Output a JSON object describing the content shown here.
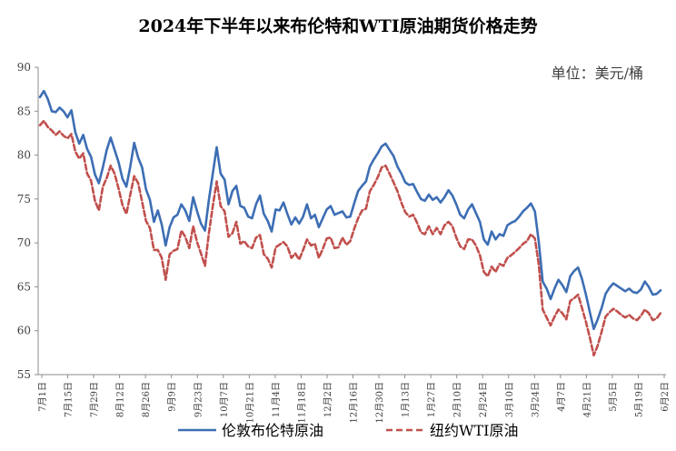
{
  "chart_data": {
    "type": "line",
    "title": "2024年下半年以来布伦特和WTI原油期货价格走势",
    "unit_label": "单位：美元/桶",
    "xlabel": "",
    "ylabel": "",
    "ylim": [
      55,
      90
    ],
    "yticks": [
      55,
      60,
      65,
      70,
      75,
      80,
      85,
      90
    ],
    "x_tick_labels": [
      "7月1日",
      "7月15日",
      "7月29日",
      "8月12日",
      "8月26日",
      "9月9日",
      "9月23日",
      "10月7日",
      "10月21日",
      "11月4日",
      "11月18日",
      "12月2日",
      "12月16日",
      "12月30日",
      "1月13日",
      "1月27日",
      "2月10日",
      "2月24日",
      "3月10日",
      "3月24日",
      "4月7日",
      "4月21日",
      "5月5日",
      "5月19日",
      "6月2日"
    ],
    "grid": false,
    "legend_position": "bottom",
    "series": [
      {
        "name": "伦敦布伦特原油",
        "color": "#3d6eb4",
        "style": "solid",
        "values": [
          86.6,
          87.3,
          86.4,
          85.0,
          84.9,
          85.4,
          85.0,
          84.3,
          85.1,
          82.6,
          81.3,
          82.3,
          80.7,
          79.8,
          77.8,
          76.8,
          78.6,
          80.6,
          82.0,
          80.6,
          79.2,
          77.3,
          76.4,
          78.7,
          81.4,
          79.7,
          78.6,
          76.1,
          74.9,
          72.4,
          73.7,
          72.1,
          69.7,
          71.8,
          72.9,
          73.2,
          74.4,
          73.7,
          72.5,
          75.2,
          73.6,
          72.2,
          71.4,
          74.9,
          77.9,
          80.9,
          77.9,
          77.2,
          74.4,
          75.9,
          76.5,
          74.2,
          74.0,
          73.0,
          72.8,
          74.4,
          75.4,
          73.3,
          72.5,
          71.3,
          73.8,
          73.7,
          74.6,
          73.3,
          72.1,
          72.9,
          72.2,
          73.0,
          74.4,
          72.8,
          73.2,
          71.8,
          72.8,
          73.8,
          74.2,
          73.2,
          73.4,
          73.6,
          72.9,
          73.0,
          74.5,
          75.9,
          76.5,
          77.0,
          78.7,
          79.5,
          80.2,
          81.0,
          81.3,
          80.6,
          79.9,
          78.7,
          77.9,
          76.9,
          76.6,
          76.7,
          75.8,
          75.0,
          74.8,
          75.5,
          74.9,
          75.2,
          74.6,
          75.2,
          76.0,
          75.4,
          74.4,
          73.2,
          72.8,
          73.8,
          74.4,
          73.4,
          72.4,
          70.4,
          69.8,
          71.3,
          70.4,
          71.0,
          70.8,
          72.0,
          72.3,
          72.5,
          73.0,
          73.6,
          74.0,
          74.5,
          73.6,
          70.1,
          65.6,
          64.8,
          63.6,
          64.8,
          65.8,
          65.2,
          64.4,
          66.2,
          66.8,
          67.2,
          65.9,
          64.1,
          62.1,
          60.2,
          61.3,
          62.6,
          64.2,
          64.9,
          65.4,
          65.1,
          64.8,
          64.5,
          64.8,
          64.4,
          64.3,
          64.7,
          65.6,
          65.0,
          64.1,
          64.2,
          64.6
        ]
      },
      {
        "name": "纽约WTI原油",
        "color": "#c0504d",
        "style": "dashed",
        "values": [
          83.4,
          83.9,
          83.2,
          82.8,
          82.3,
          82.7,
          82.2,
          81.9,
          82.4,
          80.4,
          79.6,
          80.2,
          77.9,
          77.1,
          74.8,
          73.7,
          76.4,
          77.4,
          78.8,
          77.9,
          76.2,
          74.3,
          73.3,
          75.5,
          77.6,
          76.8,
          74.7,
          72.5,
          71.7,
          69.2,
          69.2,
          68.3,
          65.8,
          68.7,
          69.1,
          69.3,
          71.4,
          70.7,
          69.4,
          71.9,
          70.1,
          68.8,
          67.4,
          71.1,
          74.2,
          77.0,
          74.2,
          73.6,
          70.7,
          71.1,
          72.4,
          69.9,
          70.2,
          69.6,
          69.4,
          70.6,
          70.9,
          68.7,
          68.2,
          67.2,
          69.5,
          69.8,
          70.1,
          69.6,
          68.3,
          68.8,
          68.1,
          69.2,
          70.4,
          69.7,
          69.9,
          68.3,
          69.3,
          70.5,
          70.6,
          69.4,
          69.5,
          70.6,
          69.8,
          70.2,
          71.6,
          72.8,
          73.7,
          73.9,
          75.9,
          76.6,
          77.5,
          78.6,
          78.8,
          77.9,
          76.9,
          75.9,
          74.6,
          73.5,
          73.0,
          73.2,
          72.3,
          71.2,
          71.0,
          71.9,
          71.0,
          71.7,
          71.0,
          72.0,
          72.4,
          71.9,
          70.6,
          69.6,
          69.3,
          70.4,
          70.4,
          69.7,
          68.6,
          66.7,
          66.2,
          67.3,
          66.7,
          67.6,
          67.4,
          68.3,
          68.6,
          69.0,
          69.4,
          69.9,
          70.2,
          71.0,
          70.5,
          67.5,
          62.4,
          61.5,
          60.6,
          61.6,
          62.4,
          62.0,
          61.3,
          63.4,
          63.7,
          64.1,
          62.6,
          61.0,
          59.2,
          57.2,
          58.3,
          59.9,
          61.6,
          62.1,
          62.5,
          62.2,
          61.8,
          61.5,
          61.8,
          61.4,
          61.2,
          61.7,
          62.4,
          62.0,
          61.2,
          61.4,
          62.0
        ]
      }
    ]
  }
}
